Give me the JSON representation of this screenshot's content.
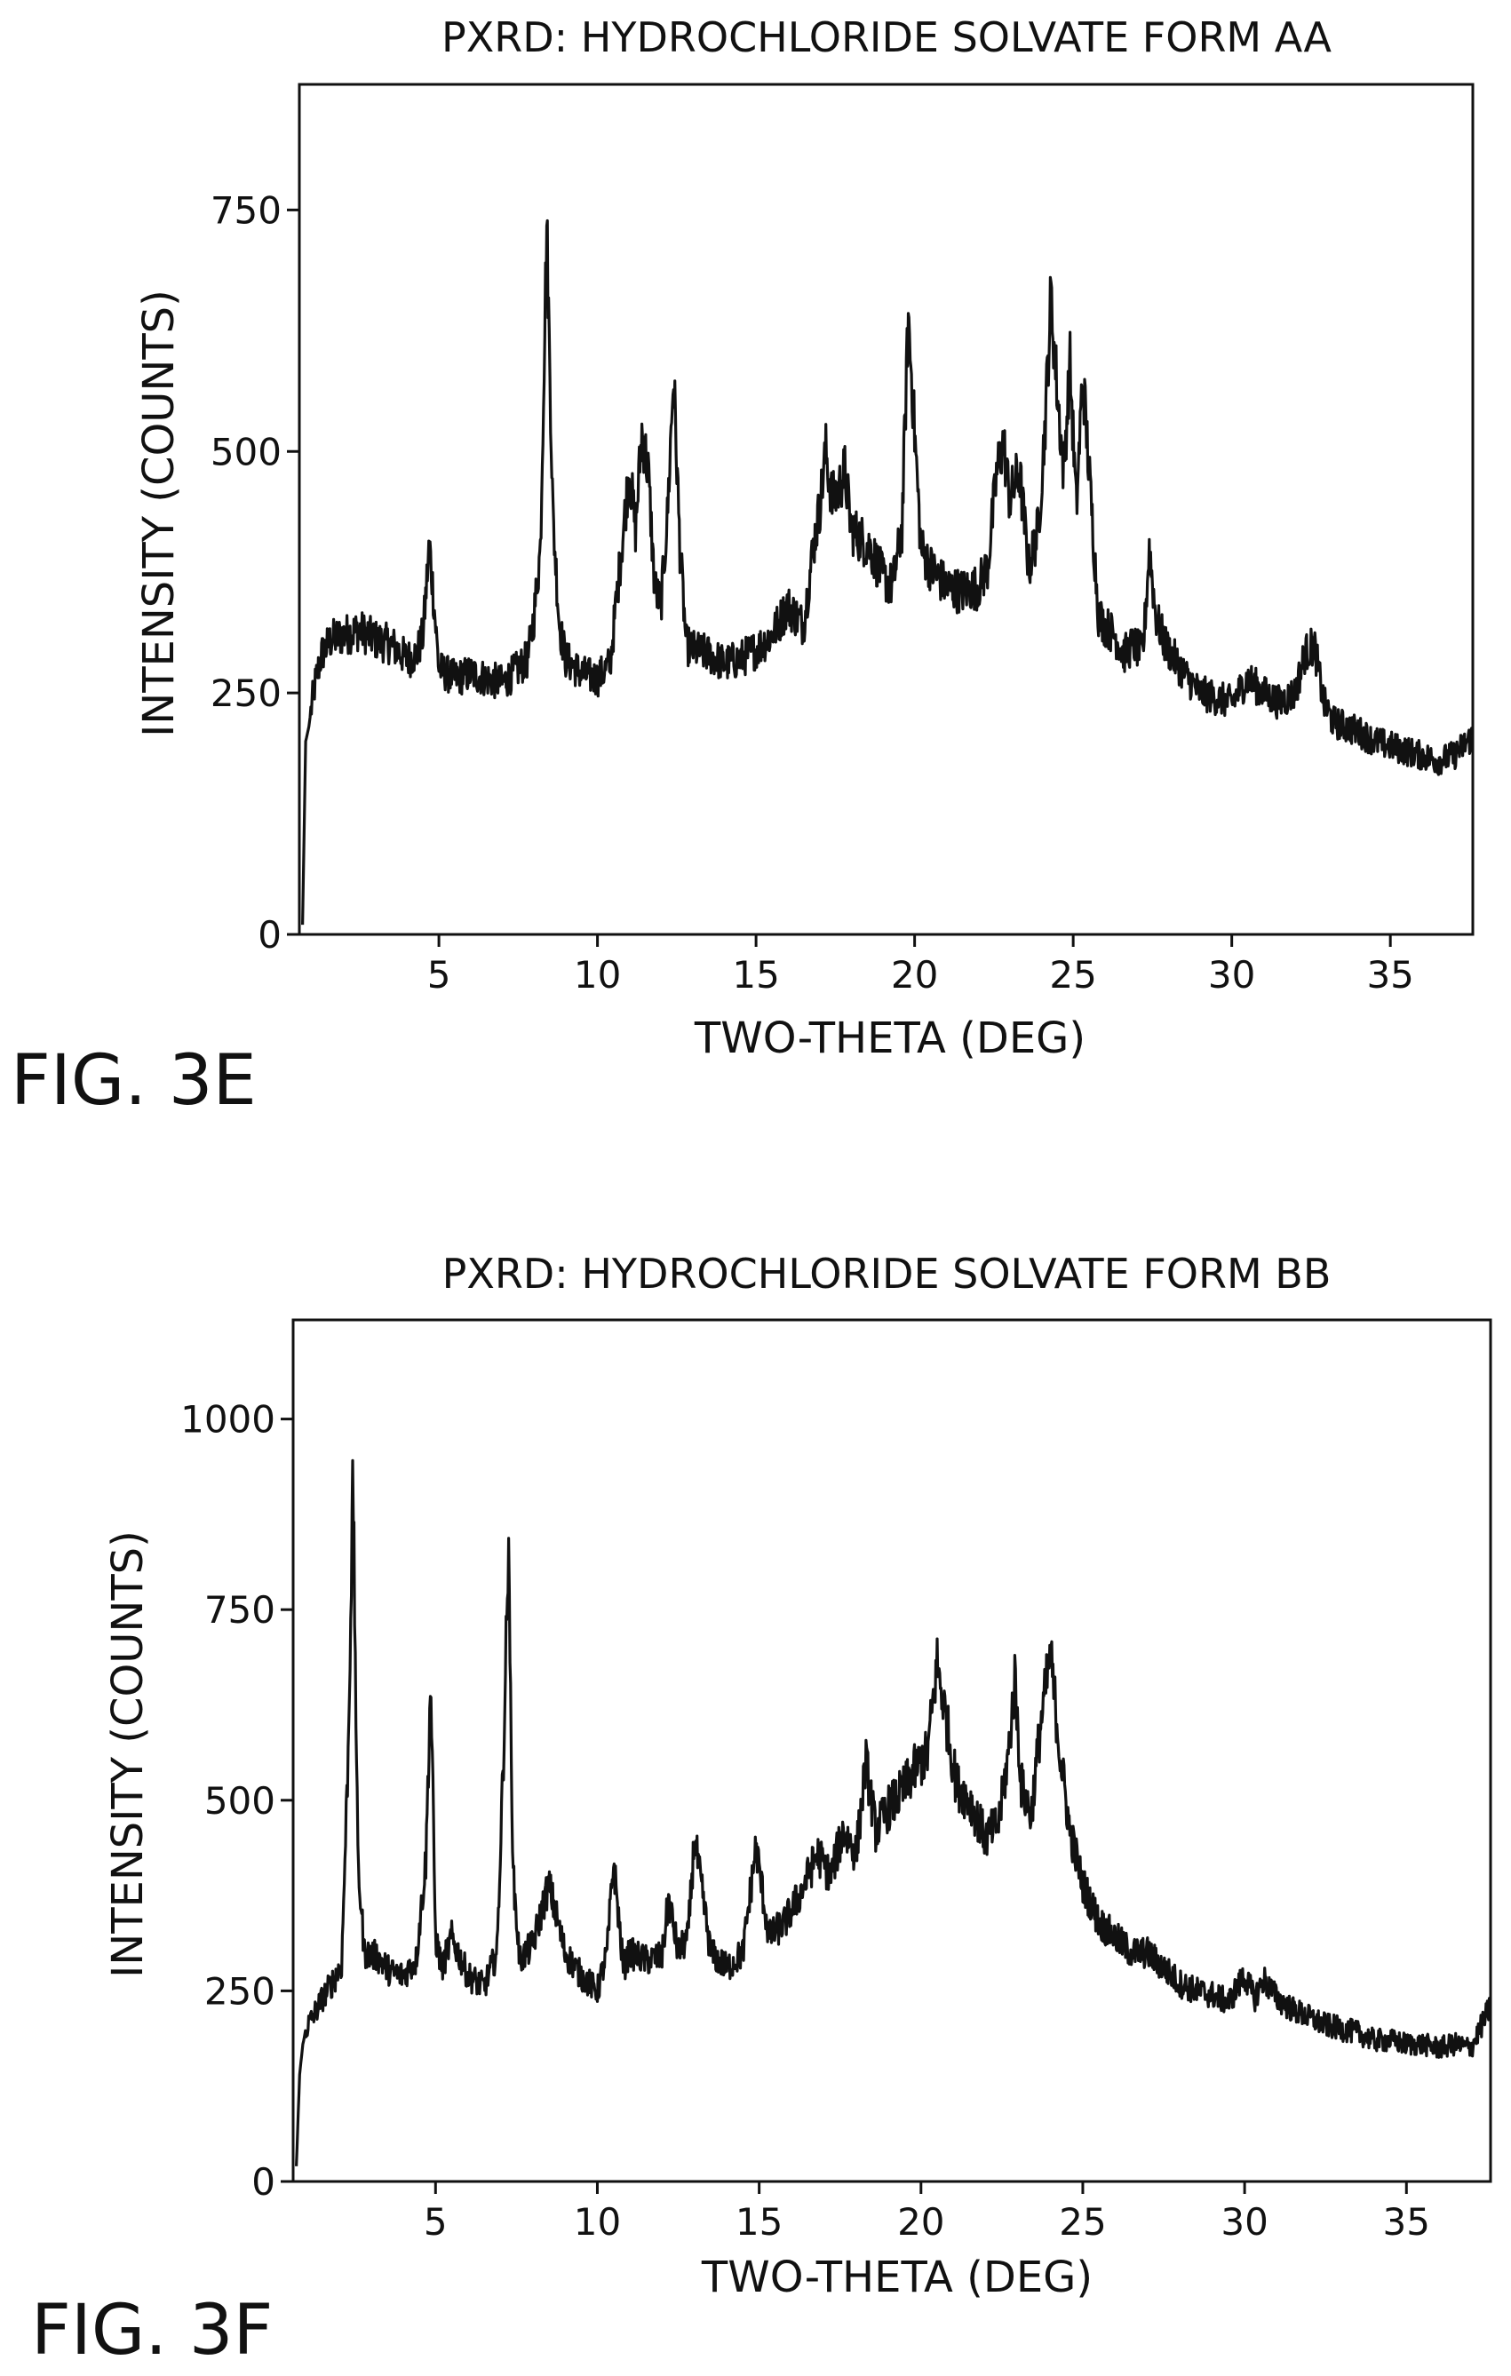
{
  "figures": [
    {
      "label": "FIG. 3E",
      "chart_data": {
        "type": "line",
        "title": "PXRD: HYDROCHLORIDE SOLVATE FORM AA",
        "xlabel": "TWO-THETA (DEG)",
        "ylabel": "INTENSITY (COUNTS)",
        "xlim": [
          0.6,
          37.6
        ],
        "ylim": [
          0,
          880
        ],
        "x_ticks": [
          5,
          10,
          15,
          20,
          25,
          30,
          35
        ],
        "x_tick_labels": [
          "5",
          "10",
          "15",
          "20",
          "25",
          "30",
          "35"
        ],
        "y_ticks": [
          0,
          250,
          500,
          750
        ],
        "y_tick_labels": [
          "0",
          "250",
          "500",
          "750"
        ],
        "grid": false,
        "series": [
          {
            "x": [
              0.7,
              0.8,
              0.9,
              1.0,
              1.1,
              1.3,
              1.6,
              2.0,
              2.5,
              3.0,
              3.5,
              4.0,
              4.3,
              4.5,
              4.7,
              5.0,
              5.5,
              6.0,
              6.5,
              7.0,
              7.5,
              7.8,
              8.0,
              8.2,
              8.4,
              8.6,
              8.8,
              9.0,
              9.5,
              10.0,
              10.4,
              10.7,
              11.0,
              11.2,
              11.4,
              11.6,
              11.8,
              12.0,
              12.2,
              12.4,
              12.6,
              12.8,
              13.0,
              13.5,
              14.0,
              14.5,
              15.0,
              15.5,
              16.0,
              16.5,
              16.8,
              17.0,
              17.2,
              17.4,
              17.6,
              17.8,
              18.0,
              18.3,
              18.6,
              19.0,
              19.3,
              19.6,
              19.8,
              20.0,
              20.2,
              20.5,
              21.0,
              21.5,
              22.0,
              22.3,
              22.6,
              22.8,
              23.0,
              23.3,
              23.6,
              23.9,
              24.1,
              24.3,
              24.5,
              24.7,
              24.9,
              25.1,
              25.3,
              25.5,
              25.8,
              26.0,
              26.3,
              26.6,
              26.9,
              27.2,
              27.4,
              27.6,
              27.9,
              28.2,
              28.5,
              29.0,
              29.5,
              30.0,
              30.5,
              31.0,
              31.5,
              32.0,
              32.3,
              32.6,
              32.9,
              33.2,
              33.6,
              34.0,
              34.5,
              35.0,
              35.5,
              36.0,
              36.5,
              37.0,
              37.6
            ],
            "y": [
              10,
              200,
              215,
              240,
              260,
              290,
              305,
              310,
              315,
              305,
              300,
              285,
              290,
              310,
              405,
              275,
              265,
              270,
              265,
              260,
              275,
              285,
              330,
              400,
              735,
              430,
              320,
              285,
              270,
              265,
              280,
              380,
              480,
              420,
              520,
              480,
              360,
              340,
              430,
              580,
              400,
              300,
              295,
              290,
              280,
              285,
              295,
              310,
              340,
              320,
              400,
              440,
              500,
              450,
              460,
              480,
              420,
              410,
              400,
              370,
              360,
              420,
              640,
              520,
              400,
              380,
              360,
              355,
              360,
              380,
              480,
              510,
              450,
              480,
              380,
              420,
              520,
              660,
              560,
              480,
              590,
              440,
              580,
              480,
              330,
              320,
              310,
              290,
              300,
              290,
              400,
              330,
              300,
              285,
              270,
              250,
              245,
              240,
              265,
              250,
              240,
              250,
              290,
              300,
              240,
              220,
              215,
              210,
              200,
              195,
              190,
              185,
              180,
              185,
              205
            ]
          }
        ]
      }
    },
    {
      "label": "FIG. 3F",
      "chart_data": {
        "type": "line",
        "title": "PXRD: HYDROCHLORIDE SOLVATE FORM BB",
        "xlabel": "TWO-THETA (DEG)",
        "ylabel": "INTENSITY (COUNTS)",
        "xlim": [
          0.6,
          37.6
        ],
        "ylim": [
          0,
          1130
        ],
        "x_ticks": [
          5,
          10,
          15,
          20,
          25,
          30,
          35
        ],
        "x_tick_labels": [
          "5",
          "10",
          "15",
          "20",
          "25",
          "30",
          "35"
        ],
        "y_ticks": [
          0,
          250,
          500,
          750,
          1000
        ],
        "y_tick_labels": [
          "0",
          "250",
          "500",
          "750",
          "1000"
        ],
        "grid": false,
        "series": [
          {
            "x": [
              0.7,
              0.8,
              0.9,
              1.0,
              1.2,
              1.5,
              1.8,
              2.1,
              2.3,
              2.45,
              2.6,
              2.8,
              3.2,
              3.6,
              4.0,
              4.4,
              4.7,
              4.85,
              5.0,
              5.2,
              5.5,
              6.0,
              6.5,
              6.9,
              7.1,
              7.25,
              7.4,
              7.6,
              8.0,
              8.5,
              9.0,
              9.5,
              10.0,
              10.3,
              10.5,
              10.8,
              11.0,
              11.5,
              12.0,
              12.2,
              12.5,
              12.8,
              13.0,
              13.5,
              14.0,
              14.5,
              14.9,
              15.3,
              15.8,
              16.3,
              16.8,
              17.2,
              17.6,
              18.0,
              18.3,
              18.6,
              19.0,
              19.4,
              19.8,
              20.2,
              20.5,
              20.8,
              21.1,
              21.5,
              22.0,
              22.4,
              22.7,
              22.9,
              23.1,
              23.4,
              23.7,
              24.0,
              24.3,
              24.6,
              25.0,
              25.5,
              26.0,
              26.5,
              27.0,
              27.5,
              28.0,
              28.5,
              29.0,
              29.5,
              30.0,
              30.3,
              30.6,
              31.0,
              31.5,
              32.0,
              32.5,
              33.0,
              33.5,
              34.0,
              34.5,
              35.0,
              35.5,
              36.0,
              36.5,
              37.0,
              37.6
            ],
            "y": [
              20,
              140,
              180,
              200,
              215,
              240,
              260,
              285,
              560,
              920,
              420,
              300,
              295,
              275,
              270,
              290,
              420,
              660,
              320,
              280,
              320,
              270,
              255,
              300,
              560,
              830,
              400,
              290,
              310,
              390,
              300,
              270,
              250,
              300,
              420,
              280,
              300,
              290,
              295,
              370,
              300,
              320,
              450,
              300,
              280,
              300,
              440,
              320,
              340,
              380,
              430,
              400,
              460,
              430,
              550,
              460,
              490,
              510,
              540,
              560,
              680,
              600,
              520,
              500,
              450,
              470,
              560,
              660,
              520,
              480,
              600,
              690,
              560,
              460,
              390,
              340,
              320,
              300,
              300,
              280,
              260,
              250,
              245,
              235,
              270,
              240,
              265,
              240,
              225,
              215,
              205,
              200,
              195,
              185,
              185,
              180,
              180,
              175,
              180,
              175,
              230
            ]
          }
        ]
      }
    }
  ]
}
